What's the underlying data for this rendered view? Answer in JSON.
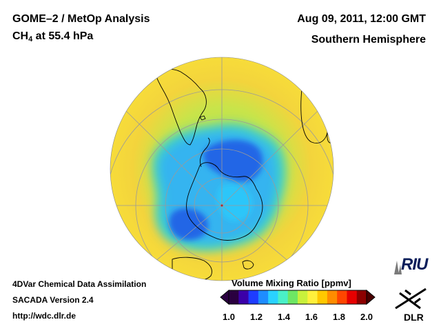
{
  "header": {
    "title": "GOME–2 / MetOp Analysis",
    "species_main": "CH",
    "species_sub": "4",
    "species_rest": " at 55.4 hPa",
    "datetime": "Aug 09, 2011, 12:00 GMT",
    "hemisphere": "Southern Hemisphere"
  },
  "footer": {
    "line1": "4DVar Chemical Data Assimilation",
    "line2": "SACADA Version 2.4",
    "line3": "http://wdc.dlr.de"
  },
  "colorbar": {
    "label": "Volume Mixing Ratio [ppmv]",
    "ticks": [
      "1.0",
      "1.2",
      "1.4",
      "1.6",
      "1.8",
      "2.0"
    ],
    "colors": [
      "#2a0040",
      "#3b00a8",
      "#1e3cff",
      "#1e8cff",
      "#2ad2ff",
      "#4af0c8",
      "#6ee664",
      "#c8f03c",
      "#fff03c",
      "#ffc800",
      "#ff8c00",
      "#ff4600",
      "#e60000",
      "#8c0000"
    ]
  },
  "logos": {
    "riu": "RIU",
    "dlr": "DLR"
  },
  "map": {
    "projection": "orthographic south polar",
    "background_level_ppmv": 1.55,
    "min_level_ppmv": 1.25,
    "colors": {
      "ocean_background": "#f5d23c",
      "rim": "#f7dc3a",
      "mid_ring": "#a6e05a",
      "transition": "#3ed0c8",
      "vortex": "#34b4f0",
      "vortex_core": "#2266e6",
      "coast": "#000000",
      "grid": "#9a9a9a"
    }
  }
}
